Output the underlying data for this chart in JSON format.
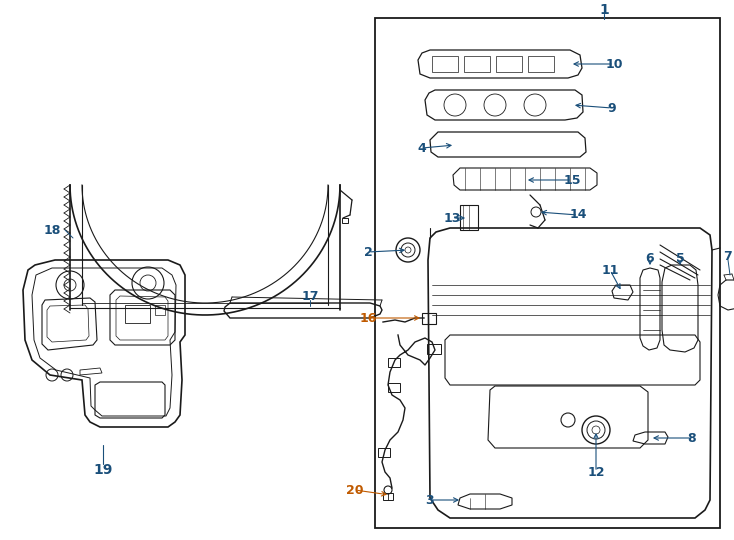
{
  "bg_color": "#ffffff",
  "line_color": "#1a1a1a",
  "label_blue": "#1a4f7a",
  "label_orange": "#c05a00",
  "fig_width": 7.34,
  "fig_height": 5.4,
  "dpi": 100
}
